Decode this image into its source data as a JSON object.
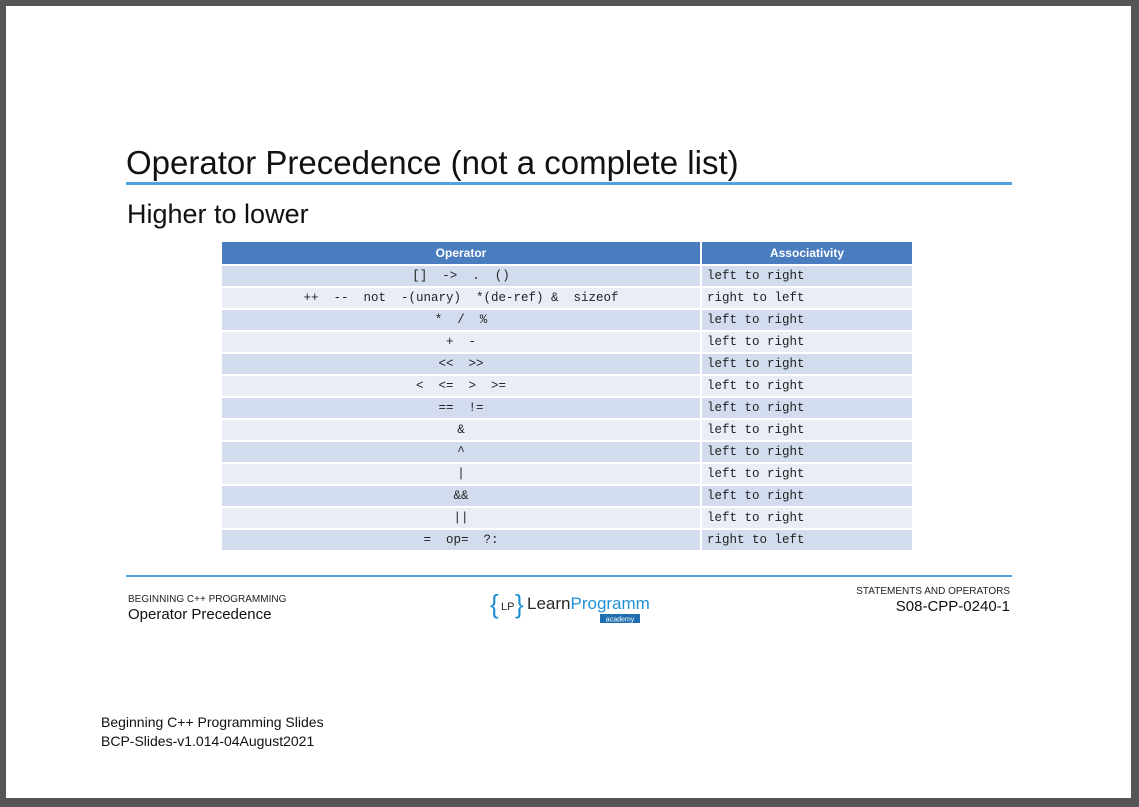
{
  "slide": {
    "title": "Operator Precedence (not a complete list)",
    "subtitle": "Higher to lower"
  },
  "table": {
    "headers": [
      "Operator",
      "Associativity"
    ],
    "rows": [
      {
        "operator": "[]  ->  .  ()",
        "assoc": "left to right"
      },
      {
        "operator": "++  --  not  -(unary)  *(de-ref) &  sizeof",
        "assoc": "right to left"
      },
      {
        "operator": "*  /  %",
        "assoc": "left to right"
      },
      {
        "operator": "+  -",
        "assoc": "left to right"
      },
      {
        "operator": "<<  >>",
        "assoc": "left to right"
      },
      {
        "operator": "<  <=  >  >=",
        "assoc": "left to right"
      },
      {
        "operator": "==  !=",
        "assoc": "left to right"
      },
      {
        "operator": "&",
        "assoc": "left to right"
      },
      {
        "operator": "^",
        "assoc": "left to right"
      },
      {
        "operator": "|",
        "assoc": "left to right"
      },
      {
        "operator": "&&",
        "assoc": "left to right"
      },
      {
        "operator": "||",
        "assoc": "left to right"
      },
      {
        "operator": "=  op=  ?:",
        "assoc": "right to left"
      }
    ]
  },
  "footer": {
    "course": "BEGINNING C++ PROGRAMMING",
    "topic": "Operator Precedence",
    "section": "STATEMENTS AND OPERATORS",
    "code": "S08-CPP-0240-1",
    "logo": {
      "initials": "LP",
      "brand_learn": "Learn",
      "brand_programming": "Programming",
      "tagline": "academy"
    }
  },
  "document": {
    "line1": "Beginning C++ Programming Slides",
    "line2": "BCP-Slides-v1.014-04August2021"
  },
  "colors": {
    "accent_rule": "#4fa3e0",
    "table_header": "#4a7cc0",
    "row_odd": "#d3dcee",
    "row_even": "#e9edf6"
  }
}
